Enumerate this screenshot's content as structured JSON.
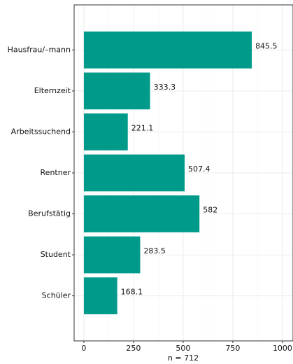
{
  "chart_data": {
    "type": "barh",
    "xlabel": "n = 712",
    "categories": [
      "Hausfrau/–mann",
      "Elternzeit",
      "Arbeitssuchend",
      "Rentner",
      "Berufstätig",
      "Student",
      "Schüler"
    ],
    "values": [
      845.5,
      333.3,
      221.1,
      507.4,
      582,
      283.5,
      168.1
    ],
    "color": "#009a8a",
    "xlim": [
      -49,
      1053
    ],
    "xticks": [
      0,
      250,
      500,
      750,
      1000
    ],
    "grid": true
  }
}
